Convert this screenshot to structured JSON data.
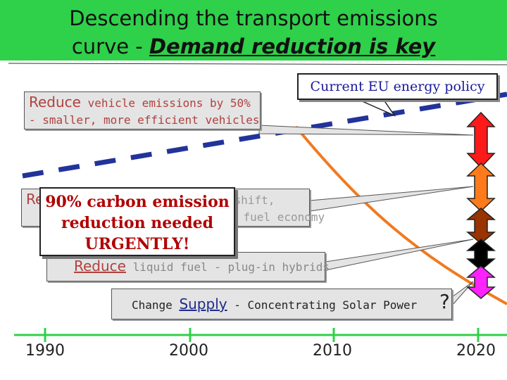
{
  "title": {
    "line1": "Descending the transport emissions",
    "line2_prefix": "curve - ",
    "line2_highlight": "Demand reduction is key"
  },
  "eu_policy": "Current EU energy policy",
  "callout1": {
    "verb": "Reduce",
    "rest": " vehicle emissions by 50%",
    "line2": "- smaller, more efficient vehicles"
  },
  "callout2": {
    "verb": "Reduce",
    "rest": " journeys by ... modal shift,",
    "line2": "... fuel economy"
  },
  "callout3": {
    "verb": "Reduce",
    "rest": " liquid fuel - plug-in hybrids"
  },
  "callout4": {
    "prefix": "Change ",
    "verb": "Supply",
    "rest": " - Concentrating Solar Power"
  },
  "question_mark": "?",
  "urgent": {
    "line1": "90% carbon emission",
    "line2": "reduction needed",
    "line3": "URGENTLY!"
  },
  "years": [
    "1990",
    "2000",
    "2010",
    "2020"
  ],
  "colors": {
    "title_bg": "#2fd04a",
    "trend_line": "#22339a",
    "curve": "#f07a20",
    "arrow_segments": [
      "#ff1a1a",
      "#ff7a1a",
      "#993300",
      "#000000",
      "#ff22ff"
    ]
  }
}
